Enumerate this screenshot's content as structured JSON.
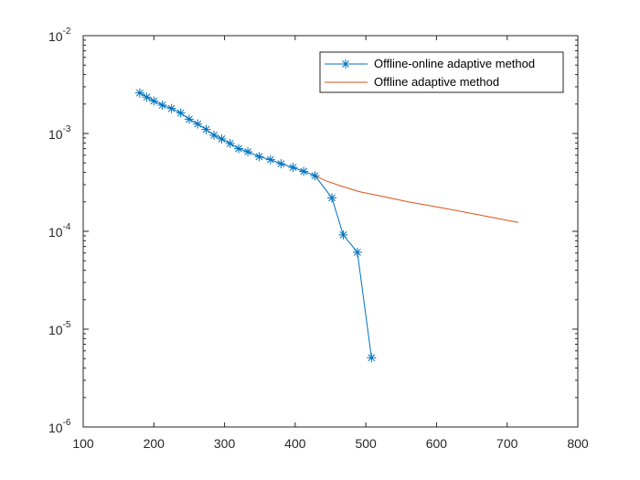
{
  "chart_data": {
    "type": "line",
    "y_scale": "log",
    "xlim": [
      100,
      800
    ],
    "ylim": [
      1e-06,
      0.01
    ],
    "x_ticks": [
      100,
      200,
      300,
      400,
      500,
      600,
      700,
      800
    ],
    "x_tick_labels": [
      "100",
      "200",
      "300",
      "400",
      "500",
      "600",
      "700",
      "800"
    ],
    "y_ticks": [
      {
        "value": 1e-06,
        "base": "10",
        "exp": "-6"
      },
      {
        "value": 1e-05,
        "base": "10",
        "exp": "-5"
      },
      {
        "value": 0.0001,
        "base": "10",
        "exp": "-4"
      },
      {
        "value": 0.001,
        "base": "10",
        "exp": "-3"
      },
      {
        "value": 0.01,
        "base": "10",
        "exp": "-2"
      }
    ],
    "grid": false,
    "legend_position": "top-right",
    "series": [
      {
        "name": "Offline-online adaptive method",
        "color": "#0072BD",
        "marker": "asterisk",
        "x": [
          180,
          190,
          200,
          212,
          225,
          238,
          250,
          262,
          274,
          285,
          296,
          308,
          320,
          333,
          349,
          365,
          380,
          397,
          412,
          428,
          452,
          468,
          488,
          508
        ],
        "y": [
          0.0026,
          0.00235,
          0.00215,
          0.00195,
          0.0018,
          0.00162,
          0.0014,
          0.00125,
          0.0011,
          0.00096,
          0.00088,
          0.00079,
          0.0007,
          0.00065,
          0.00058,
          0.00054,
          0.00049,
          0.00045,
          0.00041,
          0.00037,
          0.00022,
          9.2e-05,
          6.1e-05,
          5.1e-06
        ]
      },
      {
        "name": "Offline adaptive method",
        "color": "#D95319",
        "marker": "none",
        "x": [
          428,
          445,
          465,
          490,
          520,
          560,
          600,
          650,
          716
        ],
        "y": [
          0.00037,
          0.000325,
          0.00029,
          0.000255,
          0.00023,
          0.0002,
          0.000178,
          0.000152,
          0.000123
        ]
      }
    ]
  }
}
